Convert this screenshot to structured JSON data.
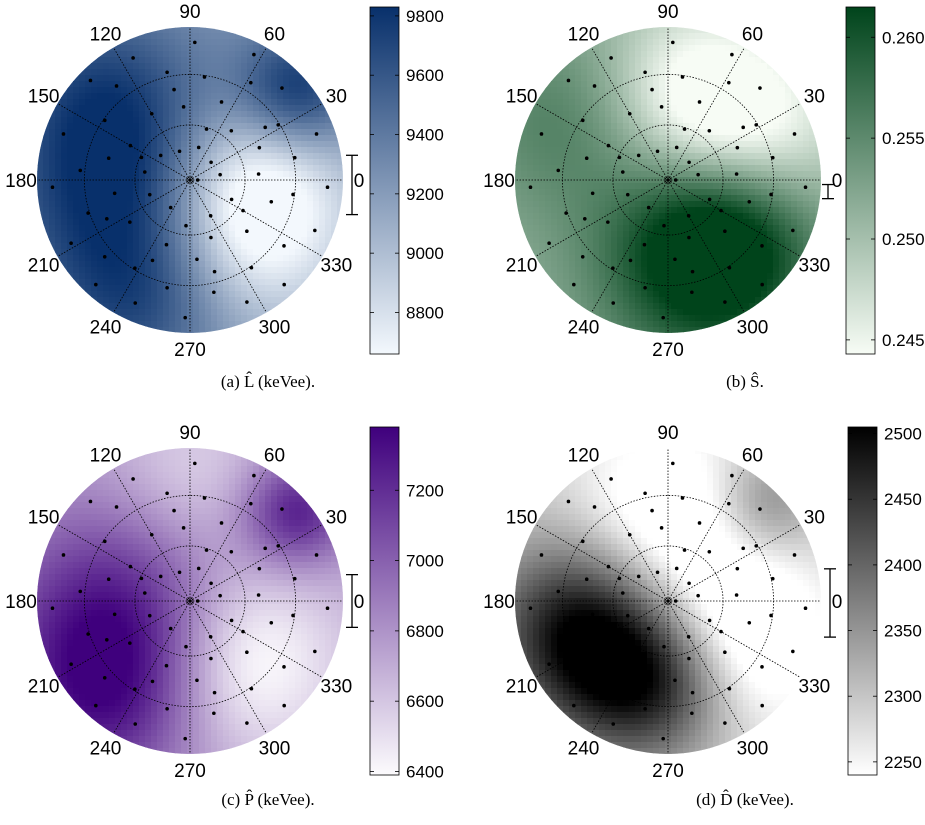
{
  "chart_data": [
    {
      "type": "heatmap",
      "projection": "polar",
      "caption": "(a) L̂ (keVee).",
      "caption_symbol": "L",
      "caption_unit": "(keVee).",
      "angle_labels": [
        "0",
        "30",
        "60",
        "90",
        "120",
        "150",
        "180",
        "210",
        "240",
        "270",
        "300",
        "330"
      ],
      "colorbar": {
        "ticks": [
          "8800",
          "9000",
          "9200",
          "9400",
          "9600",
          "9800"
        ],
        "range": [
          8660,
          9830
        ],
        "colors": [
          "#f3f8fd",
          "#08306b"
        ]
      },
      "error_bar": {
        "low": 9130,
        "high": 9330
      },
      "hotspots": [
        {
          "theta": 200,
          "r": 0.45,
          "v": 1.0,
          "s": 0.55
        },
        {
          "theta": 40,
          "r": 0.9,
          "v": 1.0,
          "s": 0.28
        },
        {
          "theta": 135,
          "r": 0.8,
          "v": 0.6,
          "s": 0.45
        },
        {
          "theta": 250,
          "r": 0.9,
          "v": 0.5,
          "s": 0.4
        },
        {
          "theta": 320,
          "r": 0.5,
          "v": -0.9,
          "s": 0.45
        },
        {
          "theta": 0,
          "r": 0.4,
          "v": -0.6,
          "s": 0.4
        }
      ],
      "base": 0.45
    },
    {
      "type": "heatmap",
      "projection": "polar",
      "caption": "(b) Ŝ.",
      "caption_symbol": "S",
      "caption_unit": ".",
      "angle_labels": [
        "0",
        "30",
        "60",
        "90",
        "120",
        "150",
        "180",
        "210",
        "240",
        "270",
        "300",
        "330"
      ],
      "colorbar": {
        "ticks": [
          "0.245",
          "0.250",
          "0.255",
          "0.260"
        ],
        "range": [
          0.2443,
          0.2615
        ],
        "colors": [
          "#f7fcf5",
          "#00441b"
        ]
      },
      "error_bar": {
        "low": 0.252,
        "high": 0.2527
      },
      "hotspots": [
        {
          "theta": 290,
          "r": 0.6,
          "v": 1.0,
          "s": 0.5
        },
        {
          "theta": 320,
          "r": 0.5,
          "v": 0.9,
          "s": 0.4
        },
        {
          "theta": 150,
          "r": 0.8,
          "v": 0.5,
          "s": 0.45
        },
        {
          "theta": 30,
          "r": 0.6,
          "v": -0.9,
          "s": 0.45
        },
        {
          "theta": 80,
          "r": 0.6,
          "v": -0.6,
          "s": 0.4
        }
      ],
      "base": 0.4
    },
    {
      "type": "heatmap",
      "projection": "polar",
      "caption": "(c) P̂ (keVee).",
      "caption_symbol": "P",
      "caption_unit": "(keVee).",
      "angle_labels": [
        "0",
        "30",
        "60",
        "90",
        "120",
        "150",
        "180",
        "210",
        "240",
        "270",
        "300",
        "330"
      ],
      "colorbar": {
        "ticks": [
          "6400",
          "6600",
          "6800",
          "7000",
          "7200"
        ],
        "range": [
          6390,
          7380
        ],
        "colors": [
          "#fcfbfd",
          "#3f007d"
        ]
      },
      "error_bar": {
        "low": 6810,
        "high": 6960
      },
      "hotspots": [
        {
          "theta": 195,
          "r": 0.45,
          "v": 1.0,
          "s": 0.55
        },
        {
          "theta": 40,
          "r": 0.9,
          "v": 1.0,
          "s": 0.25
        },
        {
          "theta": 230,
          "r": 0.85,
          "v": 0.7,
          "s": 0.45
        },
        {
          "theta": 310,
          "r": 0.5,
          "v": -0.9,
          "s": 0.45
        },
        {
          "theta": 90,
          "r": 0.8,
          "v": -0.4,
          "s": 0.4
        }
      ],
      "base": 0.35
    },
    {
      "type": "heatmap",
      "projection": "polar",
      "caption": "(d) D̂ (keVee).",
      "caption_symbol": "D",
      "caption_unit": "(keVee).",
      "angle_labels": [
        "0",
        "30",
        "60",
        "90",
        "120",
        "150",
        "180",
        "210",
        "240",
        "270",
        "300",
        "330"
      ],
      "colorbar": {
        "ticks": [
          "2250",
          "2300",
          "2350",
          "2400",
          "2450",
          "2500"
        ],
        "range": [
          2240,
          2505
        ],
        "colors": [
          "#ffffff",
          "#000000"
        ]
      },
      "error_bar": {
        "low": 2345,
        "high": 2397
      },
      "hotspots": [
        {
          "theta": 230,
          "r": 0.55,
          "v": 1.0,
          "s": 0.4
        },
        {
          "theta": 190,
          "r": 0.65,
          "v": 0.9,
          "s": 0.4
        },
        {
          "theta": 270,
          "r": 0.55,
          "v": 0.8,
          "s": 0.35
        },
        {
          "theta": 45,
          "r": 0.9,
          "v": 0.6,
          "s": 0.25
        },
        {
          "theta": 330,
          "r": 0.5,
          "v": -0.8,
          "s": 0.45
        },
        {
          "theta": 90,
          "r": 0.6,
          "v": -0.6,
          "s": 0.45
        }
      ],
      "base": 0.2
    }
  ],
  "sample_points": [
    [
      0,
      0
    ],
    [
      0,
      0.05
    ],
    [
      10,
      0.2
    ],
    [
      40,
      0.18
    ],
    [
      75,
      0.22
    ],
    [
      110,
      0.2
    ],
    [
      140,
      0.25
    ],
    [
      170,
      0.3
    ],
    [
      200,
      0.28
    ],
    [
      235,
      0.22
    ],
    [
      265,
      0.3
    ],
    [
      300,
      0.27
    ],
    [
      335,
      0.3
    ],
    [
      5,
      0.45
    ],
    [
      25,
      0.5
    ],
    [
      50,
      0.42
    ],
    [
      68,
      0.55
    ],
    [
      95,
      0.48
    ],
    [
      120,
      0.5
    ],
    [
      150,
      0.45
    ],
    [
      165,
      0.55
    ],
    [
      190,
      0.5
    ],
    [
      215,
      0.48
    ],
    [
      250,
      0.45
    ],
    [
      275,
      0.52
    ],
    [
      290,
      0.4
    ],
    [
      318,
      0.5
    ],
    [
      345,
      0.55
    ],
    [
      12,
      0.7
    ],
    [
      32,
      0.68
    ],
    [
      58,
      0.75
    ],
    [
      82,
      0.68
    ],
    [
      102,
      0.72
    ],
    [
      128,
      0.78
    ],
    [
      145,
      0.68
    ],
    [
      175,
      0.72
    ],
    [
      198,
      0.7
    ],
    [
      222,
      0.75
    ],
    [
      238,
      0.68
    ],
    [
      258,
      0.72
    ],
    [
      282,
      0.75
    ],
    [
      305,
      0.7
    ],
    [
      325,
      0.75
    ],
    [
      352,
      0.68
    ],
    [
      20,
      0.88
    ],
    [
      45,
      0.85
    ],
    [
      63,
      0.92
    ],
    [
      88,
      0.9
    ],
    [
      115,
      0.88
    ],
    [
      135,
      0.92
    ],
    [
      160,
      0.88
    ],
    [
      183,
      0.9
    ],
    [
      208,
      0.88
    ],
    [
      228,
      0.92
    ],
    [
      246,
      0.88
    ],
    [
      268,
      0.9
    ],
    [
      295,
      0.88
    ],
    [
      312,
      0.92
    ],
    [
      338,
      0.88
    ],
    [
      357,
      0.9
    ],
    [
      35,
      0.6
    ],
    [
      72,
      0.35
    ],
    [
      155,
      0.35
    ],
    [
      205,
      0.6
    ],
    [
      285,
      0.62
    ],
    [
      330,
      0.4
    ],
    [
      100,
      0.6
    ],
    [
      245,
      0.58
    ]
  ]
}
